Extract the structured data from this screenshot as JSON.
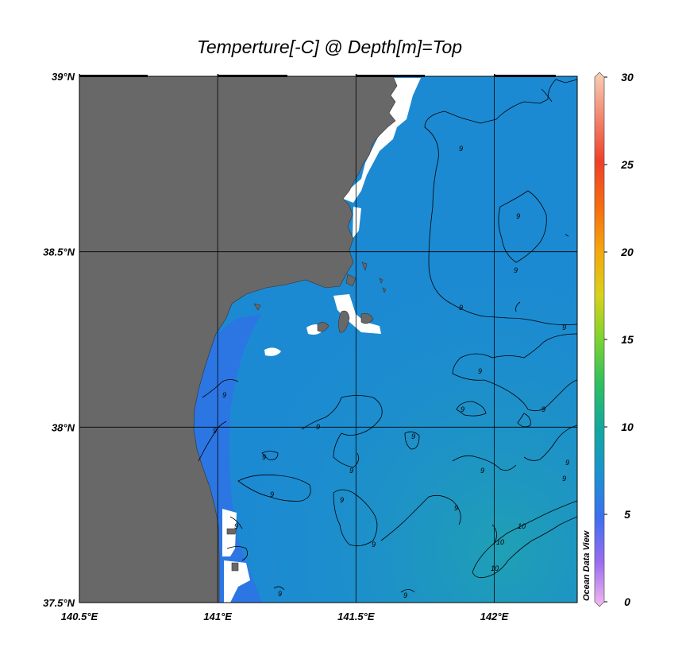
{
  "title": "Temperture[-C] @ Depth[m]=Top",
  "watermark": "Ocean Data View",
  "map": {
    "lon_range": [
      140.5,
      142.3
    ],
    "lat_range": [
      37.5,
      39.0
    ],
    "lon_ticks": [
      {
        "value": 140.5,
        "label": "140.5°E"
      },
      {
        "value": 141.0,
        "label": "141°E"
      },
      {
        "value": 141.5,
        "label": "141.5°E"
      },
      {
        "value": 142.0,
        "label": "142°E"
      }
    ],
    "lat_ticks": [
      {
        "value": 39.0,
        "label": "39°N"
      },
      {
        "value": 38.5,
        "label": "38.5°N"
      },
      {
        "value": 38.0,
        "label": "38°N"
      },
      {
        "value": 37.5,
        "label": "37.5°N"
      }
    ],
    "land_color": "#686868",
    "ocean_base_color": "#1c8ad2",
    "nearshore_color": "#2f72e6",
    "offshore_warm_color": "#1fa0b4",
    "contour_labels": [
      "9",
      "10"
    ]
  },
  "colorbar": {
    "range": [
      0,
      30
    ],
    "tick_values": [
      0,
      5,
      10,
      15,
      20,
      25,
      30
    ],
    "tick_labels": [
      "0",
      "5",
      "10",
      "15",
      "20",
      "25",
      "30"
    ],
    "colors": [
      "#f4b8ee",
      "#9b6cf0",
      "#3d6ff0",
      "#1a93d0",
      "#12a8a0",
      "#2ec060",
      "#7dd330",
      "#d8d21c",
      "#f5a60e",
      "#f66c10",
      "#f04028",
      "#f28870",
      "#f8d0b8"
    ]
  }
}
